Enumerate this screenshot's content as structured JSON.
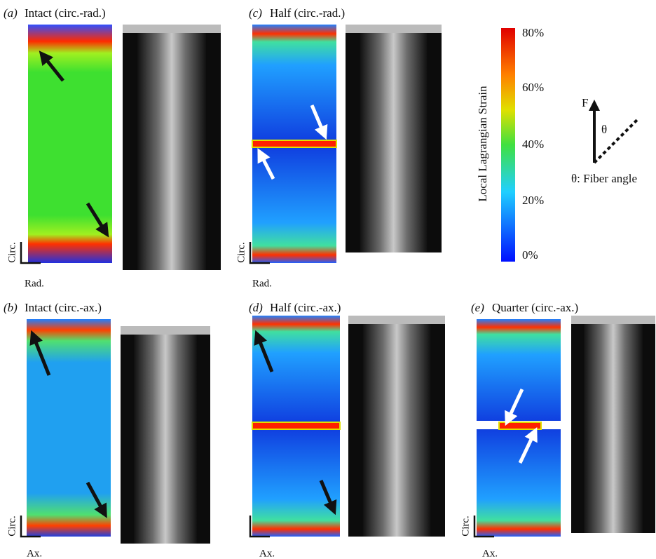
{
  "panels": [
    {
      "letter": "(a)",
      "title": "Intact (circ.-rad.)",
      "axes": {
        "vertical": "Circ.",
        "horizontal": "Rad."
      }
    },
    {
      "letter": "(c)",
      "title": "Half (circ.-rad.)",
      "axes": {
        "vertical": "Circ.",
        "horizontal": "Rad."
      }
    },
    {
      "letter": "(b)",
      "title": "Intact (circ.-ax.)",
      "axes": {
        "vertical": "Circ.",
        "horizontal": "Ax."
      }
    },
    {
      "letter": "(d)",
      "title": "Half (circ.-ax.)",
      "axes": {
        "horizontal": "Ax."
      }
    },
    {
      "letter": "(e)",
      "title": "Quarter (circ.-ax.)",
      "axes": {
        "vertical": "Circ.",
        "horizontal": "Ax."
      }
    }
  ],
  "colorbar": {
    "label": "Local Lagrangian Strain",
    "ticks": [
      "80%",
      "60%",
      "40%",
      "20%",
      "0%"
    ]
  },
  "fiber_diagram": {
    "force": "F",
    "angle": "θ",
    "caption": "θ: Fiber angle"
  }
}
